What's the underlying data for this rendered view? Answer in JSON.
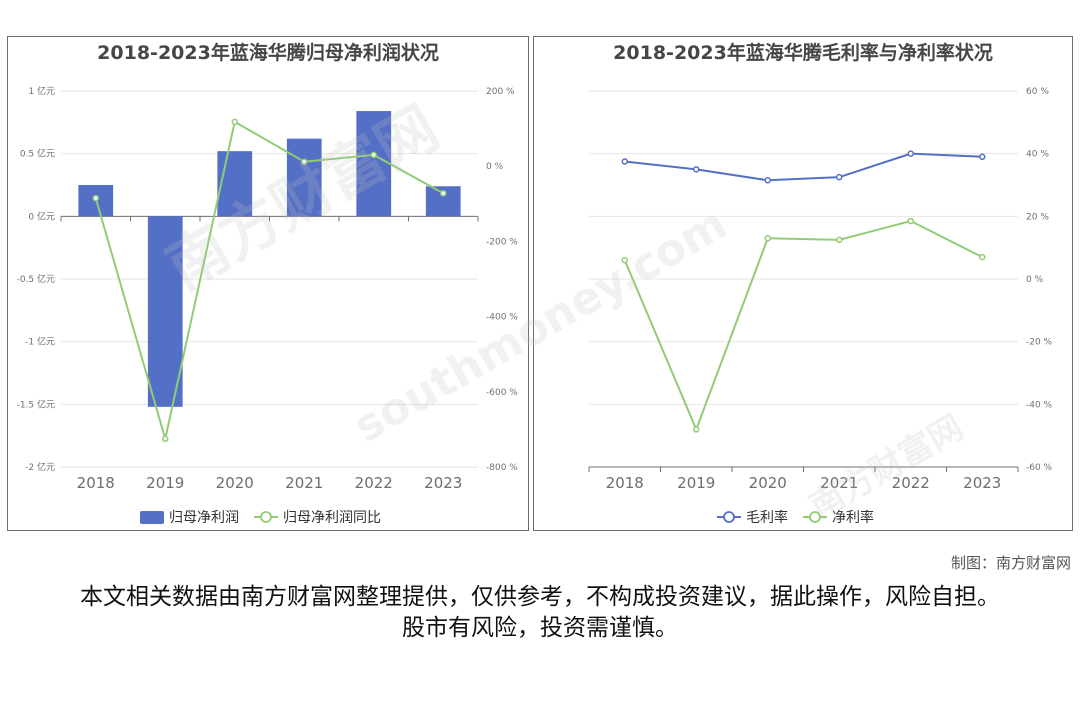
{
  "footer": {
    "credit": "制图：南方财富网",
    "disclaimer": "本文相关数据由南方财富网整理提供，仅供参考，不构成投资建议，据此操作，风险自担。股市有风险，投资需谨慎。"
  },
  "watermark": {
    "cn": "南方财富网",
    "en": "southmoney.com"
  },
  "colors": {
    "bar": "#5470c6",
    "green": "#91cc75",
    "blue": "#5470c6",
    "grid": "#e6e6e6",
    "axis": "#6e7079"
  },
  "chart_data": [
    {
      "type": "bar",
      "title": "2018-2023年蓝海华腾归母净利润状况",
      "categories": [
        "2018",
        "2019",
        "2020",
        "2021",
        "2022",
        "2023"
      ],
      "y_left": {
        "range": [
          -2,
          1
        ],
        "ticks": [
          1,
          0.5,
          0,
          -0.5,
          -1,
          -1.5,
          -2
        ],
        "tick_labels": [
          "1 亿元",
          "0.5 亿元",
          "0 亿元",
          "-0.5 亿元",
          "-1 亿元",
          "-1.5 亿元",
          "-2 亿元"
        ]
      },
      "y_right": {
        "range": [
          -800,
          200
        ],
        "ticks": [
          200,
          0,
          -200,
          -400,
          -600,
          -800
        ],
        "tick_labels": [
          "200 %",
          "0 %",
          "-200 %",
          "-400 %",
          "-600 %",
          "-800 %"
        ]
      },
      "series": [
        {
          "name": "归母净利润",
          "kind": "bar",
          "axis": "left",
          "values": [
            0.25,
            -1.52,
            0.52,
            0.62,
            0.84,
            0.24
          ]
        },
        {
          "name": "归母净利润同比",
          "kind": "line",
          "axis": "right",
          "values": [
            -85,
            -725,
            118,
            12,
            30,
            -72
          ]
        }
      ],
      "legend": "bottom",
      "grid": true
    },
    {
      "type": "line",
      "title": "2018-2023年蓝海华腾毛利率与净利率状况",
      "categories": [
        "2018",
        "2019",
        "2020",
        "2021",
        "2022",
        "2023"
      ],
      "y_right": {
        "range": [
          -60,
          60
        ],
        "ticks": [
          60,
          40,
          20,
          0,
          -20,
          -40,
          -60
        ],
        "tick_labels": [
          "60 %",
          "40 %",
          "20 %",
          "0 %",
          "-20 %",
          "-40 %",
          "-60 %"
        ]
      },
      "series": [
        {
          "name": "毛利率",
          "kind": "line",
          "axis": "right",
          "values": [
            37.5,
            35,
            31.5,
            32.5,
            40,
            39
          ]
        },
        {
          "name": "净利率",
          "kind": "line",
          "axis": "right",
          "values": [
            6,
            -48,
            13,
            12.5,
            18.5,
            7
          ]
        }
      ],
      "legend": "bottom",
      "grid": true
    }
  ]
}
